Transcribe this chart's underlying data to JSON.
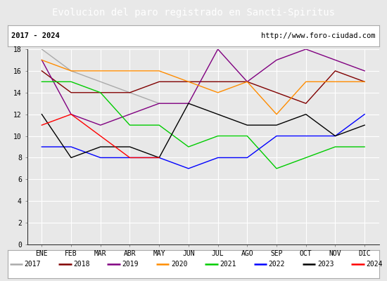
{
  "title": "Evolucion del paro registrado en Sancti-Spiritus",
  "subtitle_left": "2017 - 2024",
  "subtitle_right": "http://www.foro-ciudad.com",
  "months": [
    "ENE",
    "FEB",
    "MAR",
    "ABR",
    "MAY",
    "JUN",
    "JUL",
    "AGO",
    "SEP",
    "OCT",
    "NOV",
    "DIC"
  ],
  "ylim": [
    0,
    18
  ],
  "yticks": [
    0,
    2,
    4,
    6,
    8,
    10,
    12,
    14,
    16,
    18
  ],
  "series": {
    "2017": {
      "color": "#aaaaaa",
      "data": [
        18,
        16,
        15,
        14,
        13,
        null,
        null,
        null,
        null,
        null,
        null,
        null
      ]
    },
    "2018": {
      "color": "#800000",
      "data": [
        16,
        14,
        14,
        14,
        15,
        15,
        15,
        15,
        14,
        13,
        16,
        15
      ]
    },
    "2019": {
      "color": "#800080",
      "data": [
        17,
        12,
        11,
        12,
        13,
        13,
        18,
        15,
        17,
        18,
        17,
        16
      ]
    },
    "2020": {
      "color": "#ff8c00",
      "data": [
        17,
        16,
        16,
        16,
        16,
        15,
        14,
        15,
        12,
        15,
        15,
        15
      ]
    },
    "2021": {
      "color": "#00cc00",
      "data": [
        15,
        15,
        14,
        11,
        11,
        9,
        10,
        10,
        7,
        8,
        9,
        9
      ]
    },
    "2022": {
      "color": "#0000ff",
      "data": [
        9,
        9,
        8,
        8,
        8,
        7,
        8,
        8,
        10,
        10,
        10,
        12
      ]
    },
    "2023": {
      "color": "#000000",
      "data": [
        12,
        8,
        9,
        9,
        8,
        13,
        12,
        11,
        11,
        12,
        10,
        11
      ]
    },
    "2024": {
      "color": "#ff0000",
      "data": [
        11,
        12,
        10,
        8,
        8,
        null,
        null,
        null,
        null,
        null,
        null,
        null
      ]
    }
  },
  "bg_color": "#e8e8e8",
  "header_bg": "#4472c4",
  "header_text_color": "#ffffff",
  "header_fontsize": 10,
  "sub_fontsize": 7.5,
  "tick_fontsize": 7,
  "legend_fontsize": 7
}
